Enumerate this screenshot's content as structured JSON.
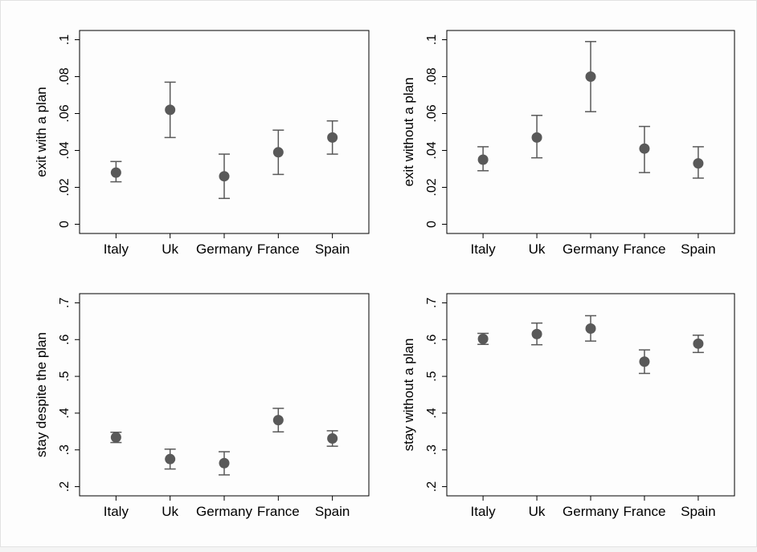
{
  "chart_data": [
    {
      "type": "scatter",
      "categories": [
        "Italy",
        "Uk",
        "Germany",
        "France",
        "Spain"
      ],
      "ylabel": "exit with a plan",
      "yticks": [
        0,
        0.02,
        0.04,
        0.06,
        0.08,
        0.1
      ],
      "ytick_labels": [
        "0",
        ".02",
        ".04",
        ".06",
        ".08",
        ".1"
      ],
      "ylim": [
        -0.005,
        0.105
      ],
      "series": [
        {
          "values": [
            0.028,
            0.062,
            0.026,
            0.039,
            0.047
          ],
          "lower": [
            0.023,
            0.047,
            0.014,
            0.027,
            0.038
          ],
          "upper": [
            0.034,
            0.077,
            0.038,
            0.051,
            0.056
          ]
        }
      ],
      "grid": false
    },
    {
      "type": "scatter",
      "categories": [
        "Italy",
        "Uk",
        "Germany",
        "France",
        "Spain"
      ],
      "ylabel": "exit without a plan",
      "yticks": [
        0,
        0.02,
        0.04,
        0.06,
        0.08,
        0.1
      ],
      "ytick_labels": [
        "0",
        ".02",
        ".04",
        ".06",
        ".08",
        ".1"
      ],
      "ylim": [
        -0.005,
        0.105
      ],
      "series": [
        {
          "values": [
            0.035,
            0.047,
            0.08,
            0.041,
            0.033
          ],
          "lower": [
            0.029,
            0.036,
            0.061,
            0.028,
            0.025
          ],
          "upper": [
            0.042,
            0.059,
            0.099,
            0.053,
            0.042
          ]
        }
      ],
      "grid": false
    },
    {
      "type": "scatter",
      "categories": [
        "Italy",
        "Uk",
        "Germany",
        "France",
        "Spain"
      ],
      "ylabel": "stay despite the plan",
      "yticks": [
        0.2,
        0.3,
        0.4,
        0.5,
        0.6,
        0.7
      ],
      "ytick_labels": [
        ".2",
        ".3",
        ".4",
        ".5",
        ".6",
        ".7"
      ],
      "ylim": [
        0.175,
        0.725
      ],
      "series": [
        {
          "values": [
            0.334,
            0.275,
            0.264,
            0.381,
            0.331
          ],
          "lower": [
            0.32,
            0.248,
            0.232,
            0.349,
            0.31
          ],
          "upper": [
            0.348,
            0.302,
            0.295,
            0.413,
            0.352
          ]
        }
      ],
      "grid": false
    },
    {
      "type": "scatter",
      "categories": [
        "Italy",
        "Uk",
        "Germany",
        "France",
        "Spain"
      ],
      "ylabel": "stay without a plan",
      "yticks": [
        0.2,
        0.3,
        0.4,
        0.5,
        0.6,
        0.7
      ],
      "ytick_labels": [
        ".2",
        ".3",
        ".4",
        ".5",
        ".6",
        ".7"
      ],
      "ylim": [
        0.175,
        0.725
      ],
      "series": [
        {
          "values": [
            0.602,
            0.615,
            0.63,
            0.54,
            0.589
          ],
          "lower": [
            0.587,
            0.586,
            0.596,
            0.508,
            0.565
          ],
          "upper": [
            0.617,
            0.645,
            0.665,
            0.572,
            0.612
          ]
        }
      ],
      "grid": false
    }
  ],
  "colors": {
    "marker": "#595959",
    "errorbar": "#595959",
    "axis": "#000000"
  }
}
